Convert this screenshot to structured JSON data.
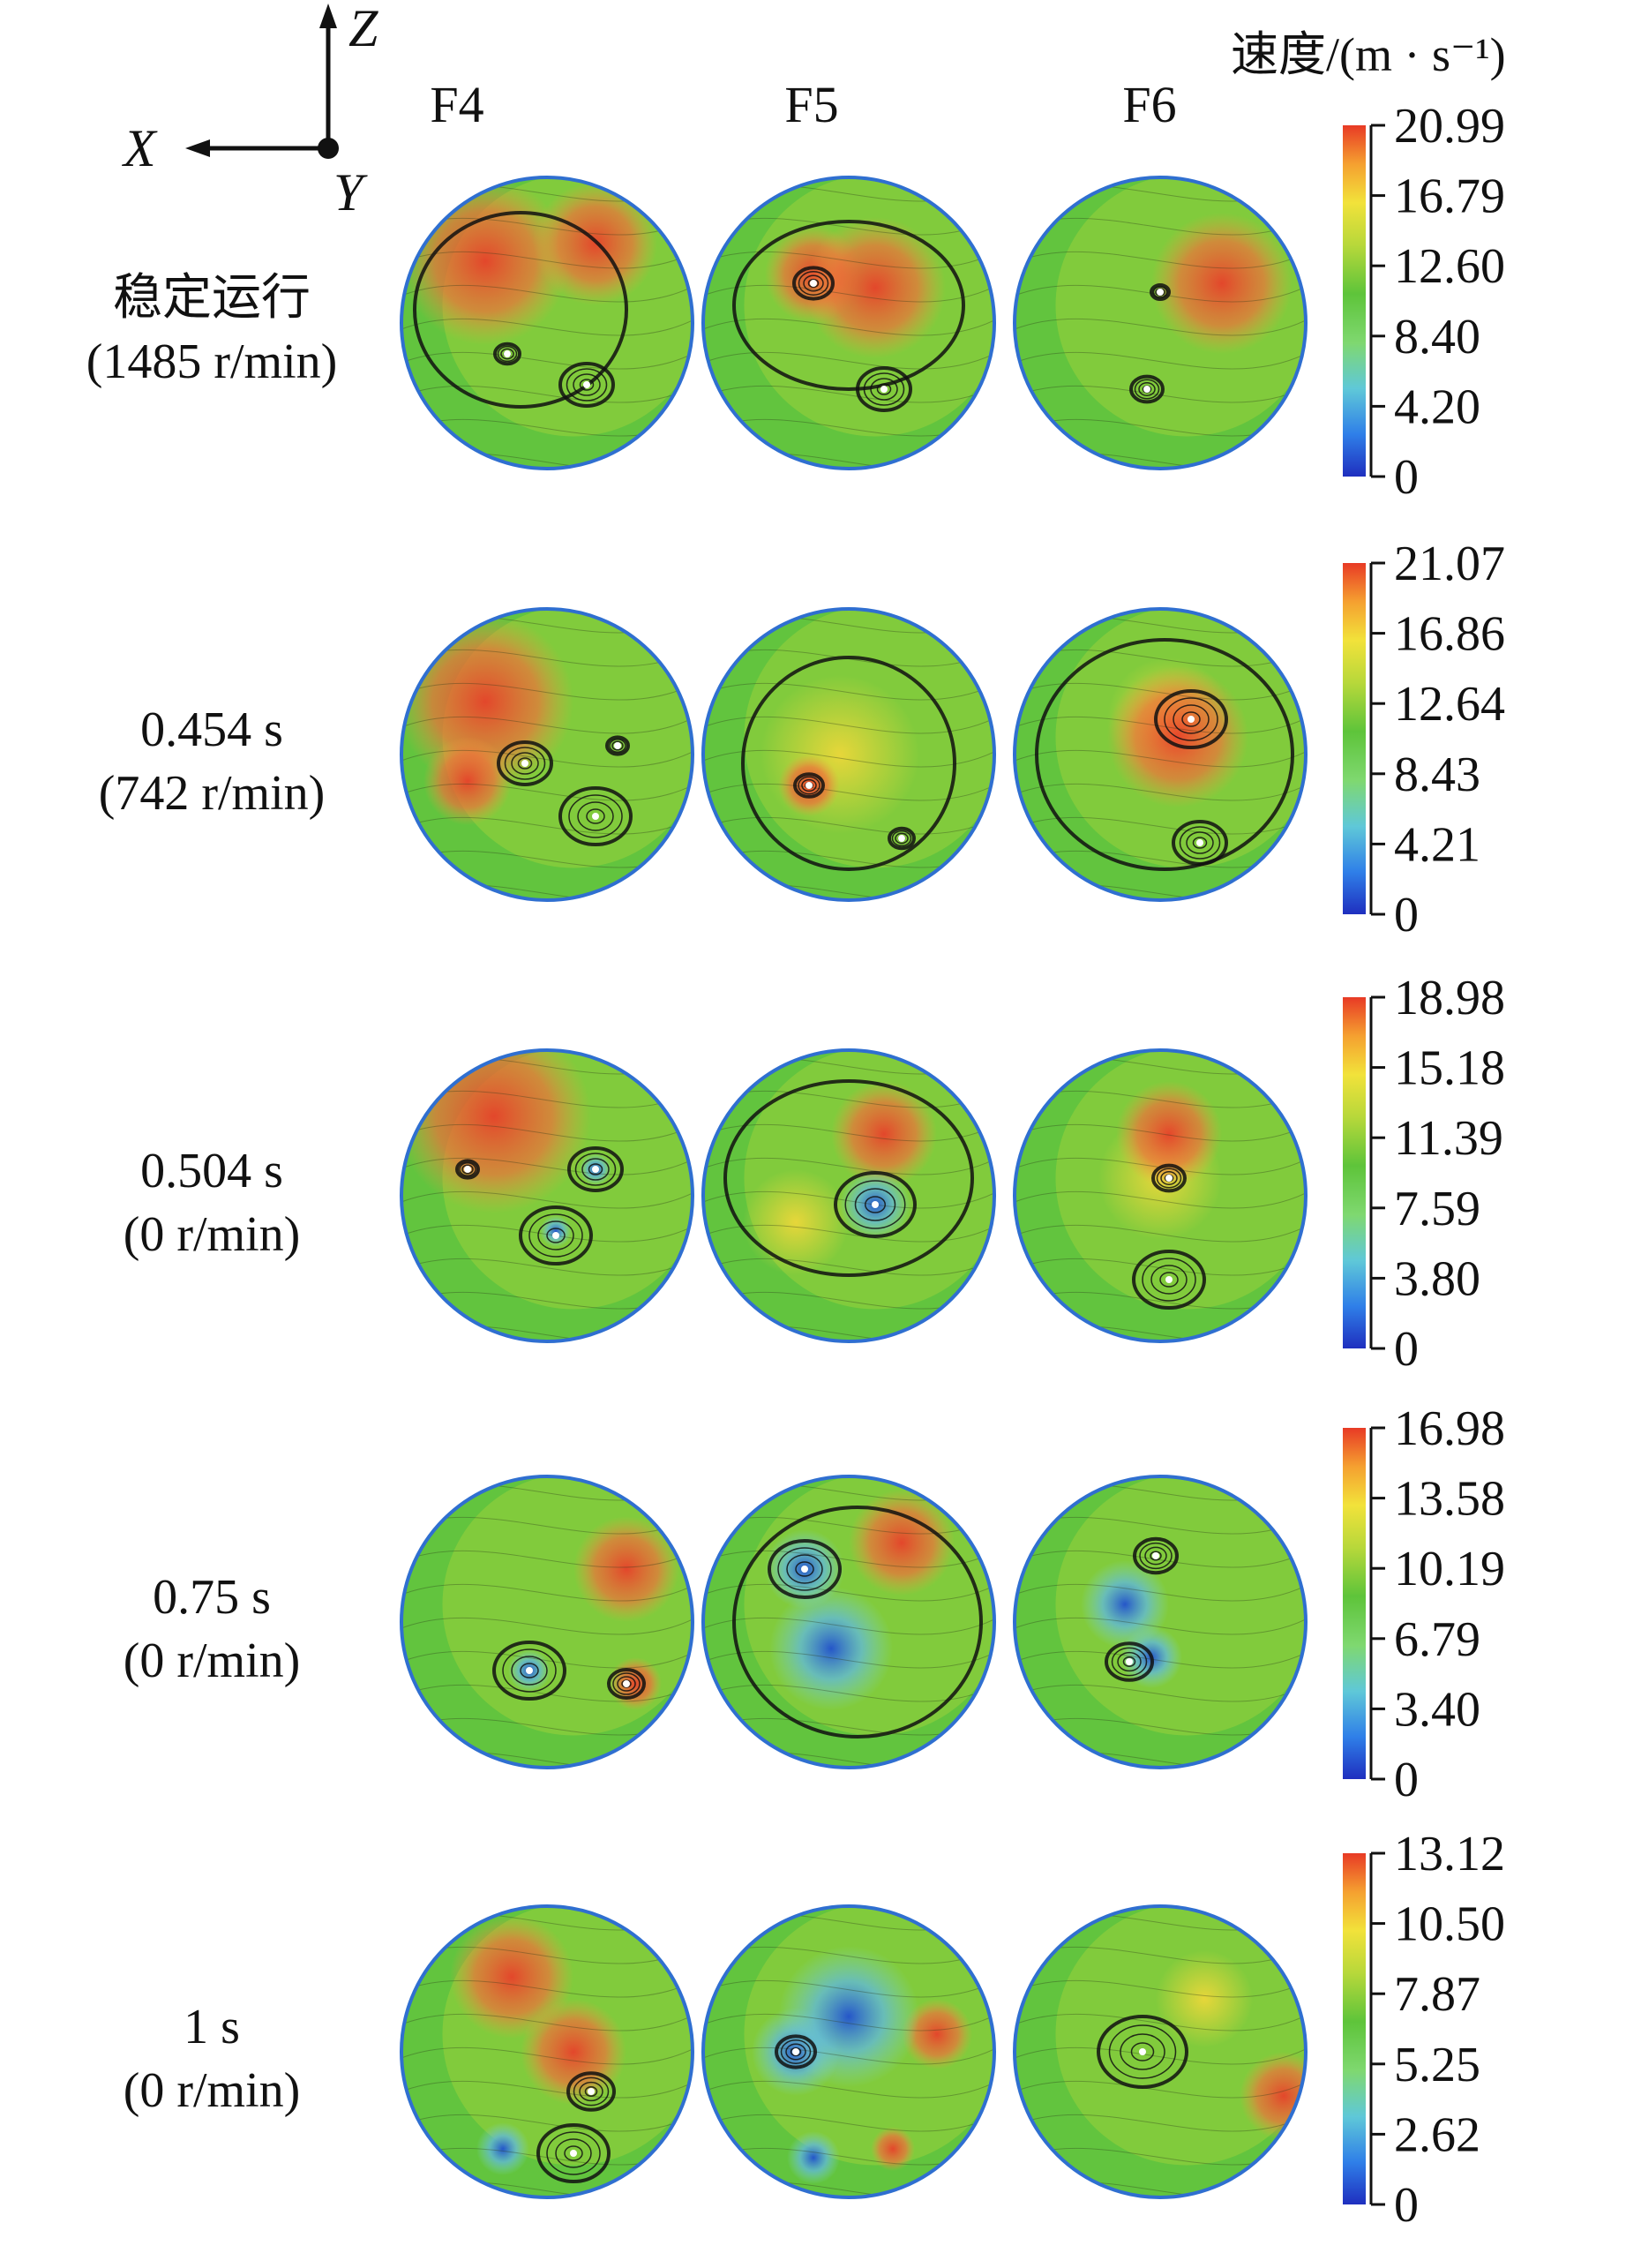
{
  "axes": {
    "z": "Z",
    "x": "X",
    "y": "Y"
  },
  "columns": [
    "F4",
    "F5",
    "F6"
  ],
  "unit": "速度/(m · s⁻¹)",
  "colors": {
    "scale": [
      "#1f2fbf",
      "#2f7fe8",
      "#5fc8d8",
      "#7fd870",
      "#5ec43a",
      "#b8d83a",
      "#f2e23a",
      "#f5a030",
      "#e83a25"
    ]
  },
  "rows": [
    {
      "label1": "稳定运行",
      "label2": "(1485 r/min)",
      "ticks": [
        "20.99",
        "16.79",
        "12.60",
        "8.40",
        "4.20",
        "0"
      ]
    },
    {
      "label1": "0.454 s",
      "label2": "(742 r/min)",
      "ticks": [
        "21.07",
        "16.86",
        "12.64",
        "8.43",
        "4.21",
        "0"
      ]
    },
    {
      "label1": "0.504 s",
      "label2": "(0 r/min)",
      "ticks": [
        "18.98",
        "15.18",
        "11.39",
        "7.59",
        "3.80",
        "0"
      ]
    },
    {
      "label1": "0.75 s",
      "label2": "(0 r/min)",
      "ticks": [
        "16.98",
        "13.58",
        "10.19",
        "6.79",
        "3.40",
        "0"
      ]
    },
    {
      "label1": "1 s",
      "label2": "(0 r/min)",
      "ticks": [
        "13.12",
        "10.50",
        "7.87",
        "5.25",
        "2.62",
        "0"
      ]
    }
  ]
}
